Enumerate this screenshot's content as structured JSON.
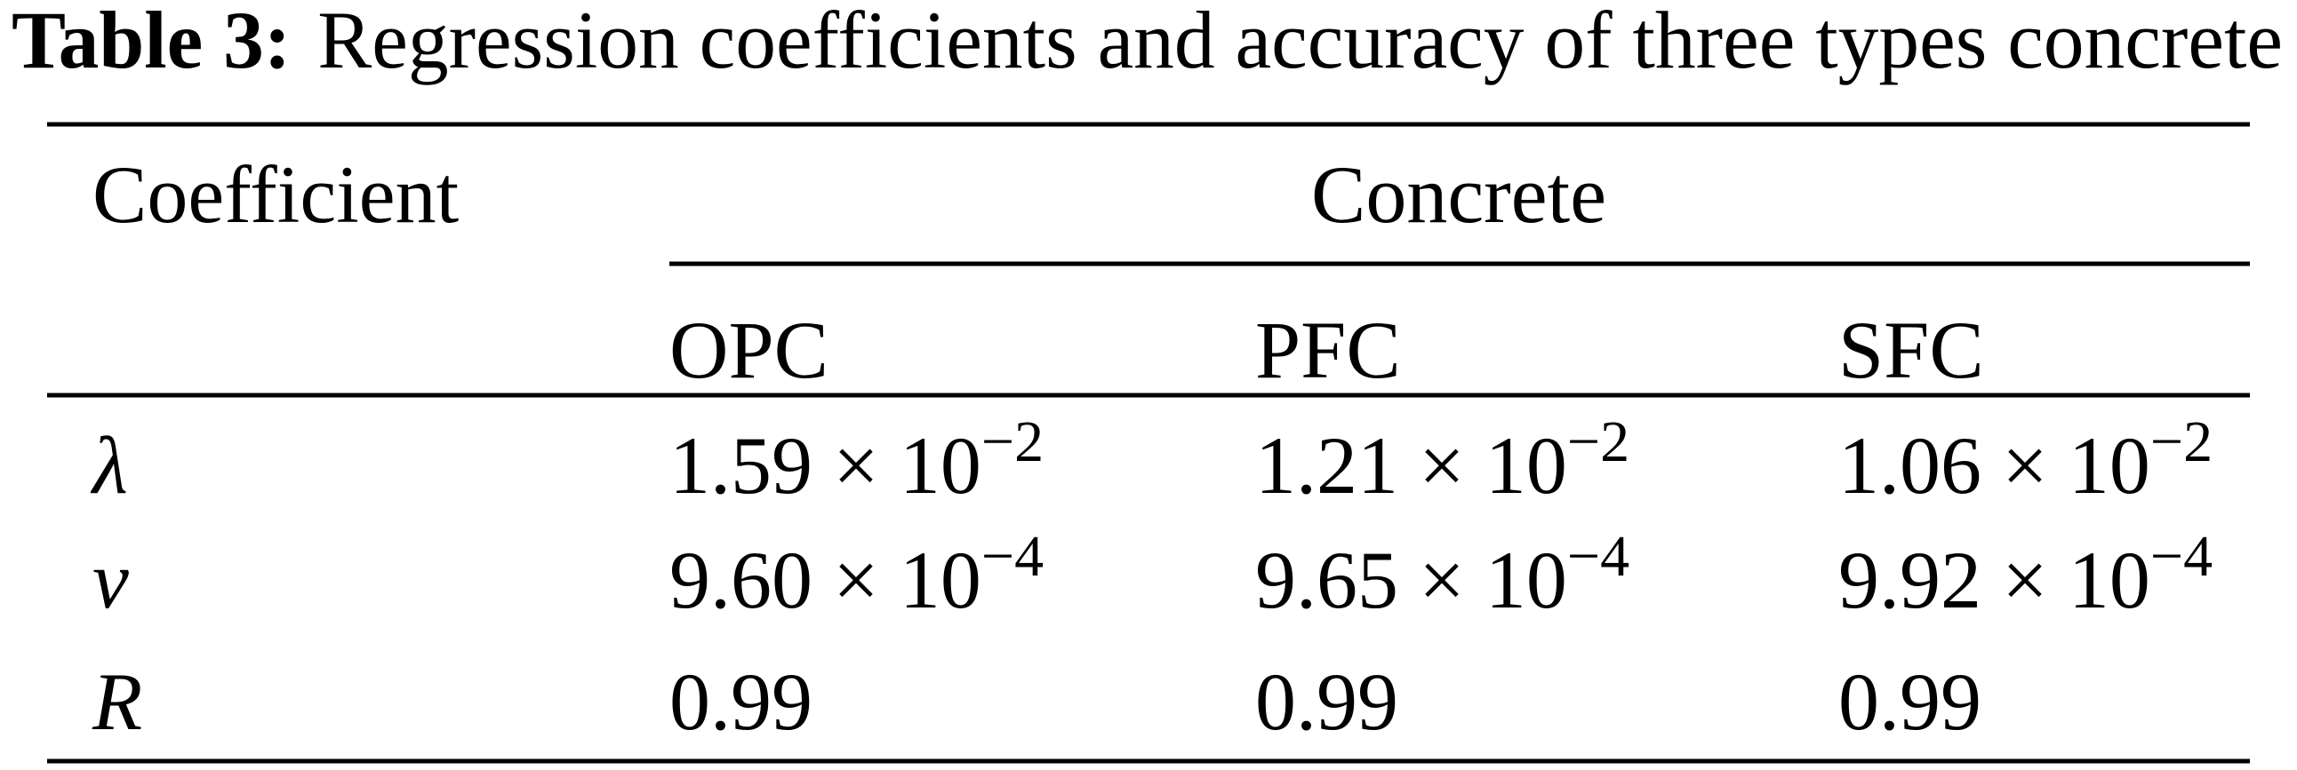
{
  "title": {
    "label": "Table 3:",
    "text": "Regression coefficients and accuracy of three types concrete"
  },
  "table": {
    "header": {
      "first": "Coefficient",
      "group": "Concrete",
      "columns": [
        "OPC",
        "PFC",
        "SFC"
      ]
    },
    "rows": [
      {
        "symbol": "λ",
        "cells": [
          {
            "base": "1.59 × 10",
            "exp": "−2"
          },
          {
            "base": "1.21 × 10",
            "exp": "−2"
          },
          {
            "base": "1.06 × 10",
            "exp": "−2"
          }
        ]
      },
      {
        "symbol": "v",
        "cells": [
          {
            "base": "9.60 × 10",
            "exp": "−4"
          },
          {
            "base": "9.65 × 10",
            "exp": "−4"
          },
          {
            "base": "9.92 × 10",
            "exp": "−4"
          }
        ]
      },
      {
        "symbol": "R",
        "cells": [
          {
            "base": "0.99"
          },
          {
            "base": "0.99"
          },
          {
            "base": "0.99"
          }
        ]
      }
    ]
  }
}
